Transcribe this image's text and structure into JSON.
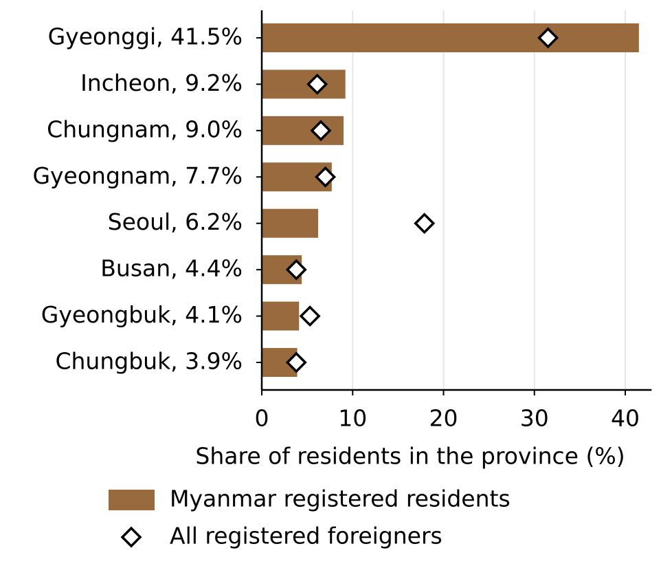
{
  "chart_data": {
    "type": "bar",
    "orientation": "horizontal",
    "xlabel": "Share of residents in the province (%)",
    "categories": [
      "Gyeonggi, 41.5%",
      "Incheon, 9.2%",
      "Chungnam, 9.0%",
      "Gyeongnam, 7.7%",
      "Seoul, 6.2%",
      "Busan, 4.4%",
      "Gyeongbuk, 4.1%",
      "Chungbuk, 3.9%"
    ],
    "series": [
      {
        "name": "Myanmar registered residents",
        "type": "bar",
        "color": "#996a3e",
        "values": [
          41.5,
          9.2,
          9.0,
          7.7,
          6.2,
          4.4,
          4.1,
          3.9
        ]
      },
      {
        "name": "All registered foreigners",
        "type": "scatter",
        "marker": "diamond",
        "color": "#000000",
        "values": [
          31.5,
          6.1,
          6.5,
          7.0,
          17.9,
          3.8,
          5.3,
          3.8
        ]
      }
    ],
    "xlim": [
      0,
      42.9
    ],
    "xticks": [
      0,
      10,
      20,
      30,
      40
    ],
    "grid": true,
    "legend": "bottom"
  }
}
